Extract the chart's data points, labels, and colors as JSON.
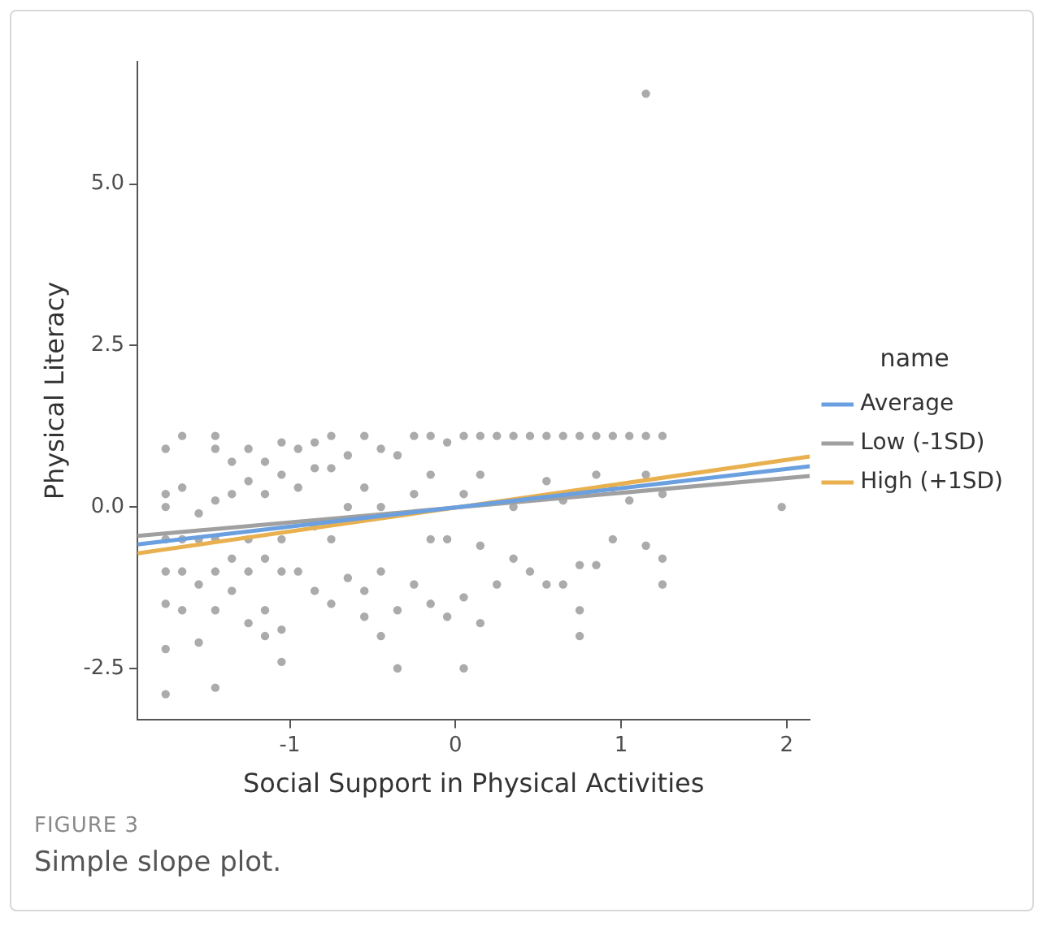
{
  "chart_data": {
    "type": "scatter",
    "xlabel": "Social Support in Physical Activities",
    "ylabel": "Physical Literacy",
    "legend_title": "name",
    "legend": "right",
    "grid": false,
    "xlim": [
      -1.92,
      2.14
    ],
    "ylim": [
      -3.3,
      6.9
    ],
    "xticks": [
      -1,
      0,
      1,
      2
    ],
    "yticks": [
      {
        "value": -2.5,
        "label": "-2.5"
      },
      {
        "value": 0,
        "label": "0.0"
      },
      {
        "value": 2.5,
        "label": "2.5"
      },
      {
        "value": 5,
        "label": "5.0"
      }
    ],
    "annotations": [
      "FIGURE 3",
      "Simple slope plot."
    ],
    "series": [
      {
        "marker": "circle",
        "color": "#8c8c8c",
        "x": [
          -1.75,
          -1.75,
          -1.75,
          -1.75,
          -1.75,
          -1.75,
          -1.75,
          -1.75,
          -1.65,
          -1.65,
          -1.65,
          -1.65,
          -1.65,
          -1.55,
          -1.55,
          -1.55,
          -1.55,
          -1.45,
          -1.45,
          -1.45,
          -1.45,
          -1.45,
          -1.45,
          -1.45,
          -1.35,
          -1.35,
          -1.35,
          -1.35,
          -1.25,
          -1.25,
          -1.25,
          -1.25,
          -1.25,
          -1.15,
          -1.15,
          -1.15,
          -1.15,
          -1.15,
          -1.05,
          -1.05,
          -1.05,
          -1.05,
          -1.05,
          -1.05,
          -0.95,
          -0.95,
          -0.95,
          -0.85,
          -0.85,
          -0.85,
          -0.85,
          -0.75,
          -0.75,
          -0.75,
          -0.75,
          -0.65,
          -0.65,
          -0.65,
          -0.55,
          -0.55,
          -0.55,
          -0.55,
          -0.45,
          -0.45,
          -0.45,
          -0.45,
          -0.35,
          -0.35,
          -0.35,
          -0.25,
          -0.25,
          -0.25,
          -0.15,
          -0.15,
          -0.15,
          -0.15,
          -0.05,
          -0.05,
          -0.05,
          0.05,
          0.05,
          0.05,
          0.05,
          0.15,
          0.15,
          0.15,
          0.15,
          0.25,
          0.25,
          0.35,
          0.35,
          0.35,
          0.45,
          0.45,
          0.55,
          0.55,
          0.55,
          0.65,
          0.65,
          0.65,
          0.75,
          0.75,
          0.75,
          0.75,
          0.85,
          0.85,
          0.85,
          0.95,
          0.95,
          0.95,
          1.05,
          1.05,
          1.15,
          1.15,
          1.15,
          1.15,
          1.25,
          1.25,
          1.25,
          1.25,
          1.97
        ],
        "values": [
          0.9,
          0.2,
          0,
          -0.5,
          -1.0,
          -1.5,
          -2.2,
          -2.9,
          1.1,
          0.3,
          -0.5,
          -1.0,
          -1.6,
          -0.1,
          -0.5,
          -1.2,
          -2.1,
          1.1,
          0.9,
          0.1,
          -0.5,
          -1.0,
          -1.6,
          -2.8,
          0.7,
          0.2,
          -0.8,
          -1.3,
          0.9,
          0.4,
          -0.5,
          -1.0,
          -1.8,
          0.7,
          0.2,
          -0.8,
          -1.6,
          -2.0,
          1.0,
          0.5,
          -0.5,
          -1.0,
          -1.9,
          -2.4,
          0.9,
          0.3,
          -1.0,
          1.0,
          0.6,
          -0.3,
          -1.3,
          1.1,
          0.6,
          -0.5,
          -1.5,
          0.8,
          0.0,
          -1.1,
          1.1,
          0.3,
          -1.3,
          -1.7,
          0.9,
          0.0,
          -1.0,
          -2.0,
          0.8,
          -1.6,
          -2.5,
          1.1,
          0.2,
          -1.2,
          1.1,
          0.5,
          -0.5,
          -1.5,
          1.0,
          -0.5,
          -1.7,
          1.1,
          0.2,
          -1.4,
          -2.5,
          1.1,
          0.5,
          -0.6,
          -1.8,
          1.1,
          -1.2,
          1.1,
          0.0,
          -0.8,
          1.1,
          -1.0,
          1.1,
          0.4,
          -1.2,
          1.1,
          0.1,
          -1.2,
          1.1,
          -0.9,
          -1.6,
          -2.0,
          1.1,
          0.5,
          -0.9,
          1.1,
          0.3,
          -0.5,
          1.1,
          0.1,
          1.1,
          0.5,
          -0.6,
          6.4,
          1.1,
          0.2,
          -0.8,
          -1.2,
          0.0
        ]
      },
      {
        "type": "line",
        "marker": "none",
        "name": "Average",
        "color": "#6a9fe0",
        "x": [
          -1.92,
          2.14
        ],
        "values": [
          -0.58,
          0.63
        ]
      },
      {
        "type": "line",
        "marker": "none",
        "name": "Low (-1SD)",
        "color": "#a0a0a0",
        "x": [
          -1.92,
          2.14
        ],
        "values": [
          -0.45,
          0.48
        ]
      },
      {
        "type": "line",
        "marker": "none",
        "name": "High (+1SD)",
        "color": "#e8b04f",
        "x": [
          -1.92,
          2.14
        ],
        "values": [
          -0.72,
          0.78
        ]
      }
    ]
  }
}
